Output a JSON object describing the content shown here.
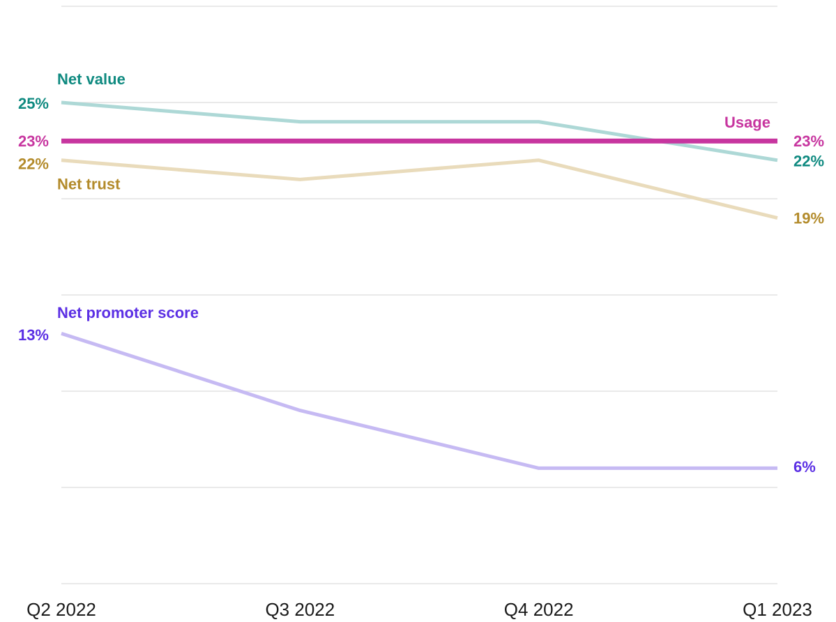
{
  "chart_data": {
    "type": "line",
    "categories": [
      "Q2 2022",
      "Q3 2022",
      "Q4 2022",
      "Q1 2023"
    ],
    "ylim": [
      0,
      30
    ],
    "yticks": [
      0,
      5,
      10,
      15,
      20,
      25,
      30
    ],
    "grid": true,
    "series": [
      {
        "name": "Net value",
        "color": "#add8d6",
        "label_color": "#0f8a80",
        "values": [
          25,
          24,
          24,
          22
        ],
        "value_labels": [
          "25%",
          null,
          null,
          "22%"
        ]
      },
      {
        "name": "Usage",
        "color": "#c7359f",
        "label_color": "#c7359f",
        "values": [
          23,
          23,
          23,
          23
        ],
        "value_labels": [
          "23%",
          null,
          null,
          "23%"
        ]
      },
      {
        "name": "Net trust",
        "color": "#e9dbbb",
        "label_color": "#b38b2b",
        "values": [
          22,
          21,
          22,
          19
        ],
        "value_labels": [
          "22%",
          null,
          null,
          "19%"
        ]
      },
      {
        "name": "Net promoter score",
        "color": "#c6baf3",
        "label_color": "#5b2fe4",
        "values": [
          13,
          9,
          6,
          6
        ],
        "value_labels": [
          "13%",
          null,
          null,
          "6%"
        ]
      }
    ]
  }
}
